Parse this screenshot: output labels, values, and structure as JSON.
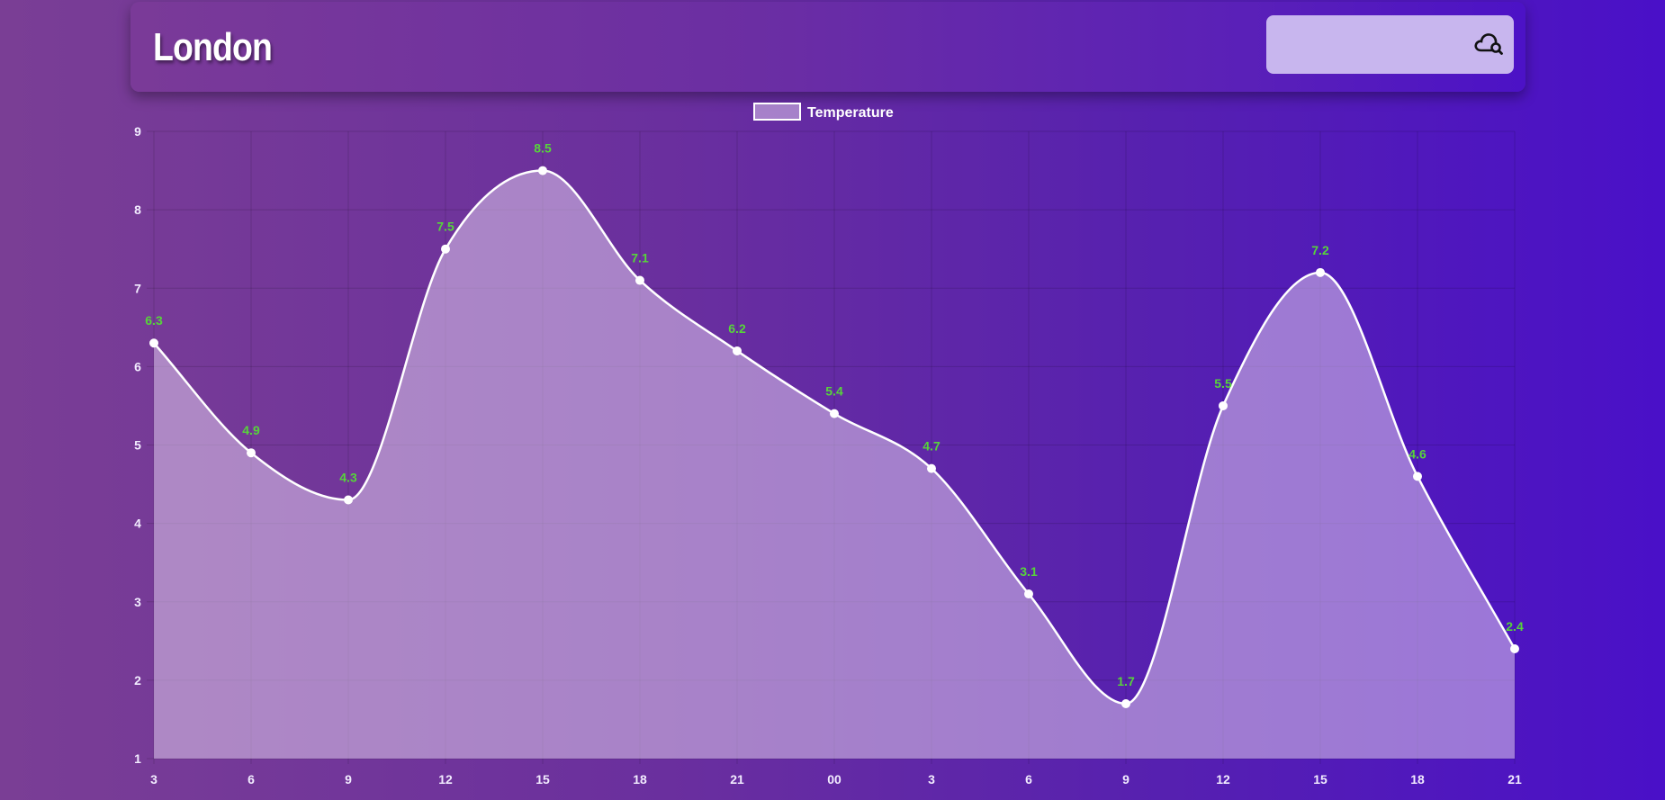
{
  "header": {
    "city": "London",
    "search_placeholder": "",
    "search_icon": "cloud-search-icon"
  },
  "chart_data": {
    "type": "area",
    "legend": [
      "Temperature"
    ],
    "legend_position": "top-center",
    "grid": true,
    "ylim": [
      1,
      9
    ],
    "yticks": [
      "1",
      "2",
      "3",
      "4",
      "5",
      "6",
      "7",
      "8",
      "9"
    ],
    "categories": [
      "3",
      "6",
      "9",
      "12",
      "15",
      "18",
      "21",
      "00",
      "3",
      "6",
      "9",
      "12",
      "15",
      "18",
      "21"
    ],
    "series": [
      {
        "name": "Temperature",
        "values": [
          6.3,
          4.9,
          4.3,
          7.5,
          8.5,
          7.1,
          6.2,
          5.4,
          4.7,
          3.1,
          1.7,
          5.5,
          7.2,
          4.6,
          2.4
        ],
        "data_labels": [
          "6.3",
          "4.9",
          "4.3",
          "7.5",
          "8.5",
          "7.1",
          "6.2",
          "5.4",
          "4.7",
          "3.1",
          "1.7",
          "5.5",
          "7.2",
          "4.6",
          "2.4"
        ]
      }
    ],
    "colors": {
      "line": "#ffffff",
      "fill": "rgba(220,200,235,0.55)",
      "data_label": "#57d43a",
      "grid": "rgba(0,0,0,0.14)"
    }
  }
}
